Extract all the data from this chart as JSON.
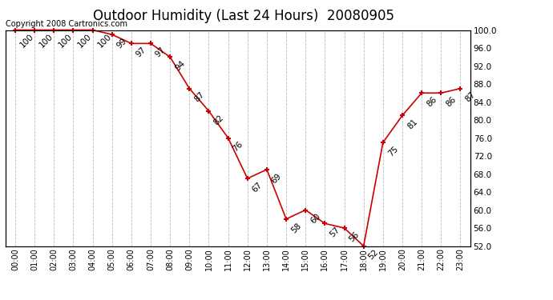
{
  "title": "Outdoor Humidity (Last 24 Hours)  20080905",
  "copyright": "Copyright 2008 Cartronics.com",
  "x_labels": [
    "00:00",
    "01:00",
    "02:00",
    "03:00",
    "04:00",
    "05:00",
    "06:00",
    "07:00",
    "08:00",
    "09:00",
    "10:00",
    "11:00",
    "12:00",
    "13:00",
    "14:00",
    "15:00",
    "16:00",
    "17:00",
    "18:00",
    "19:00",
    "20:00",
    "21:00",
    "22:00",
    "23:00"
  ],
  "x_values": [
    0,
    1,
    2,
    3,
    4,
    5,
    6,
    7,
    8,
    9,
    10,
    11,
    12,
    13,
    14,
    15,
    16,
    17,
    18,
    19,
    20,
    21,
    22,
    23
  ],
  "y_values": [
    100,
    100,
    100,
    100,
    100,
    99,
    97,
    97,
    94,
    87,
    82,
    76,
    67,
    69,
    58,
    60,
    57,
    56,
    52,
    75,
    81,
    86,
    86,
    87
  ],
  "point_labels": [
    "100",
    "100",
    "100",
    "100",
    "100",
    "99",
    "97",
    "97",
    "94",
    "87",
    "82",
    "76",
    "67",
    "69",
    "58",
    "60",
    "57",
    "56",
    "52",
    "75",
    "81",
    "86",
    "86",
    "87"
  ],
  "line_color": "#cc0000",
  "marker_color": "#cc0000",
  "bg_color": "#ffffff",
  "grid_color": "#bbbbbb",
  "title_fontsize": 12,
  "label_fontsize": 7.5,
  "ylim_min": 52.0,
  "ylim_max": 100.0,
  "y_tick_step": 4.0,
  "copyright_fontsize": 7
}
